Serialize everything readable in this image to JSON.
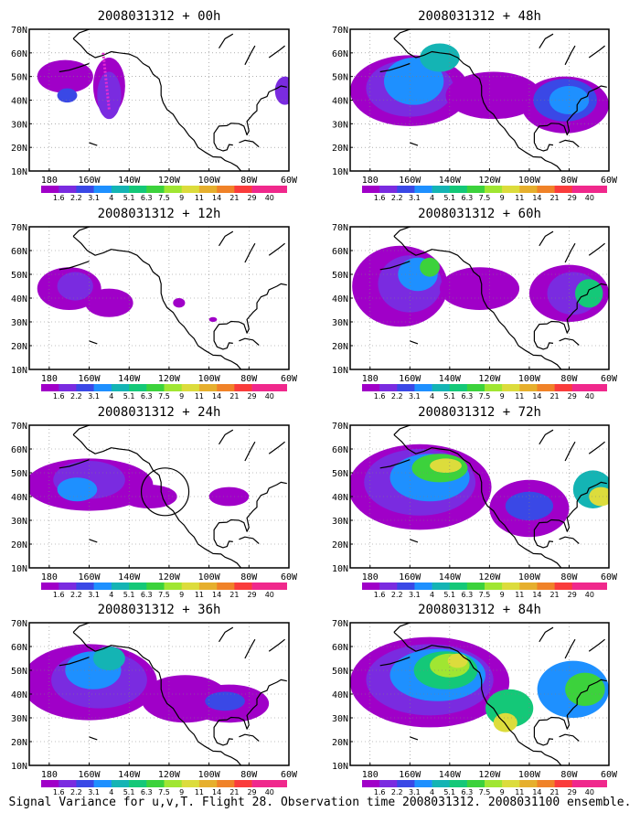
{
  "caption": "Signal Variance for u,v,T. Flight 28. Observation time 2008031312. 2008031100 ensemble.",
  "panel_titles": [
    "2008031312 + 00h",
    "2008031312 + 48h",
    "2008031312 + 12h",
    "2008031312 + 60h",
    "2008031312 + 24h",
    "2008031312 + 72h",
    "2008031312 + 36h",
    "2008031312 + 84h"
  ],
  "lat_labels": [
    "70N",
    "60N",
    "50N",
    "40N",
    "30N",
    "20N",
    "10N"
  ],
  "lon_labels": [
    "180",
    "160W",
    "140W",
    "120W",
    "100W",
    "80W",
    "60W"
  ],
  "colorbar_labels": [
    "1.6",
    "2.2",
    "3.1",
    "4",
    "5.1",
    "6.3",
    "7.5",
    "9",
    "11",
    "14",
    "21",
    "29",
    "40"
  ],
  "colorbar_colors": [
    "#a000c8",
    "#7a2be0",
    "#3a48e6",
    "#1e90ff",
    "#14b4b4",
    "#14c878",
    "#3cd23c",
    "#a0e632",
    "#dcdc3c",
    "#e6af2d",
    "#f08228",
    "#fa3c3c",
    "#f0288c"
  ],
  "coast_color": "#000000"
}
